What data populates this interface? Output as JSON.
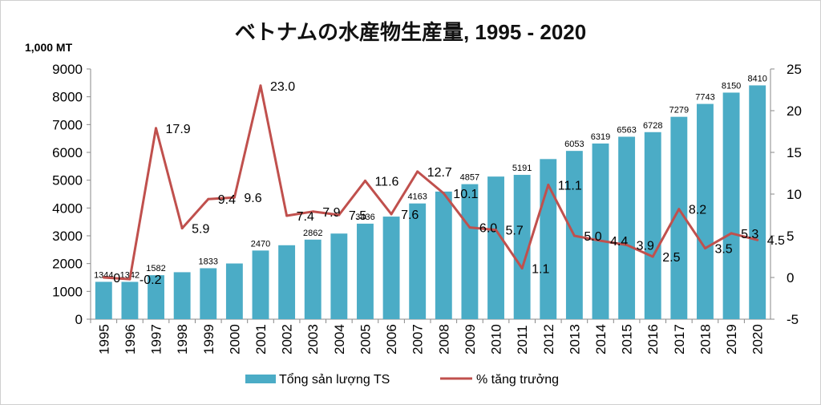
{
  "chart_data": {
    "type": "bar",
    "title": "ベトナムの水産物生産量, 1995 - 2020",
    "y_unit_label": "1,000 MT",
    "categories": [
      "1995",
      "1996",
      "1997",
      "1998",
      "1999",
      "2000",
      "2001",
      "2002",
      "2003",
      "2004",
      "2005",
      "2006",
      "2007",
      "2008",
      "2009",
      "2010",
      "2011",
      "2012",
      "2013",
      "2014",
      "2015",
      "2016",
      "2017",
      "2018",
      "2019",
      "2020"
    ],
    "series": [
      {
        "name": "Tổng sản lượng TS",
        "type": "bar",
        "axis": "left",
        "color": "#4bacc6",
        "values": [
          1344,
          1342,
          1582,
          1690,
          1833,
          2004,
          2470,
          2660,
          2862,
          3080,
          3436,
          3690,
          4163,
          4590,
          4857,
          5130,
          5191,
          5760,
          6053,
          6319,
          6563,
          6728,
          7279,
          7743,
          8150,
          8410
        ],
        "labels": [
          "1344",
          "1342",
          "1582",
          "",
          "1833",
          "",
          "2470",
          "",
          "2862",
          "",
          "3436",
          "",
          "4163",
          "",
          "4857",
          "",
          "5191",
          "",
          "6053",
          "6319",
          "6563",
          "6728",
          "7279",
          "7743",
          "8150",
          "8410"
        ]
      },
      {
        "name": "% tăng trưởng",
        "type": "line",
        "axis": "right",
        "color": "#c0504d",
        "values": [
          0,
          -0.2,
          17.9,
          5.9,
          9.4,
          9.6,
          23.0,
          7.4,
          7.9,
          7.5,
          11.6,
          7.6,
          12.7,
          10.1,
          6.0,
          5.7,
          1.1,
          11.1,
          5.0,
          4.4,
          3.9,
          2.5,
          8.2,
          3.5,
          5.3,
          4.5
        ],
        "labels": [
          "0",
          "-0.2",
          "17.9",
          "5.9",
          "9.4",
          "9.6",
          "23.0",
          "7.4",
          "7.9",
          "7.5",
          "11.6",
          "7.6",
          "12.7",
          "10.1",
          "6.0",
          "5.7",
          "1.1",
          "11.1",
          "5.0",
          "4.4",
          "3.9",
          "2.5",
          "8.2",
          "3.5",
          "5.3",
          "4.5"
        ]
      }
    ],
    "y_left": {
      "min": 0,
      "max": 9000,
      "ticks": [
        "0",
        "1000",
        "2000",
        "3000",
        "4000",
        "5000",
        "6000",
        "7000",
        "8000",
        "9000"
      ]
    },
    "y_right": {
      "min": -5,
      "max": 25,
      "ticks": [
        "-5",
        "0",
        "5",
        "10",
        "15",
        "20",
        "25"
      ]
    },
    "grid": false,
    "legend_position": "bottom"
  }
}
